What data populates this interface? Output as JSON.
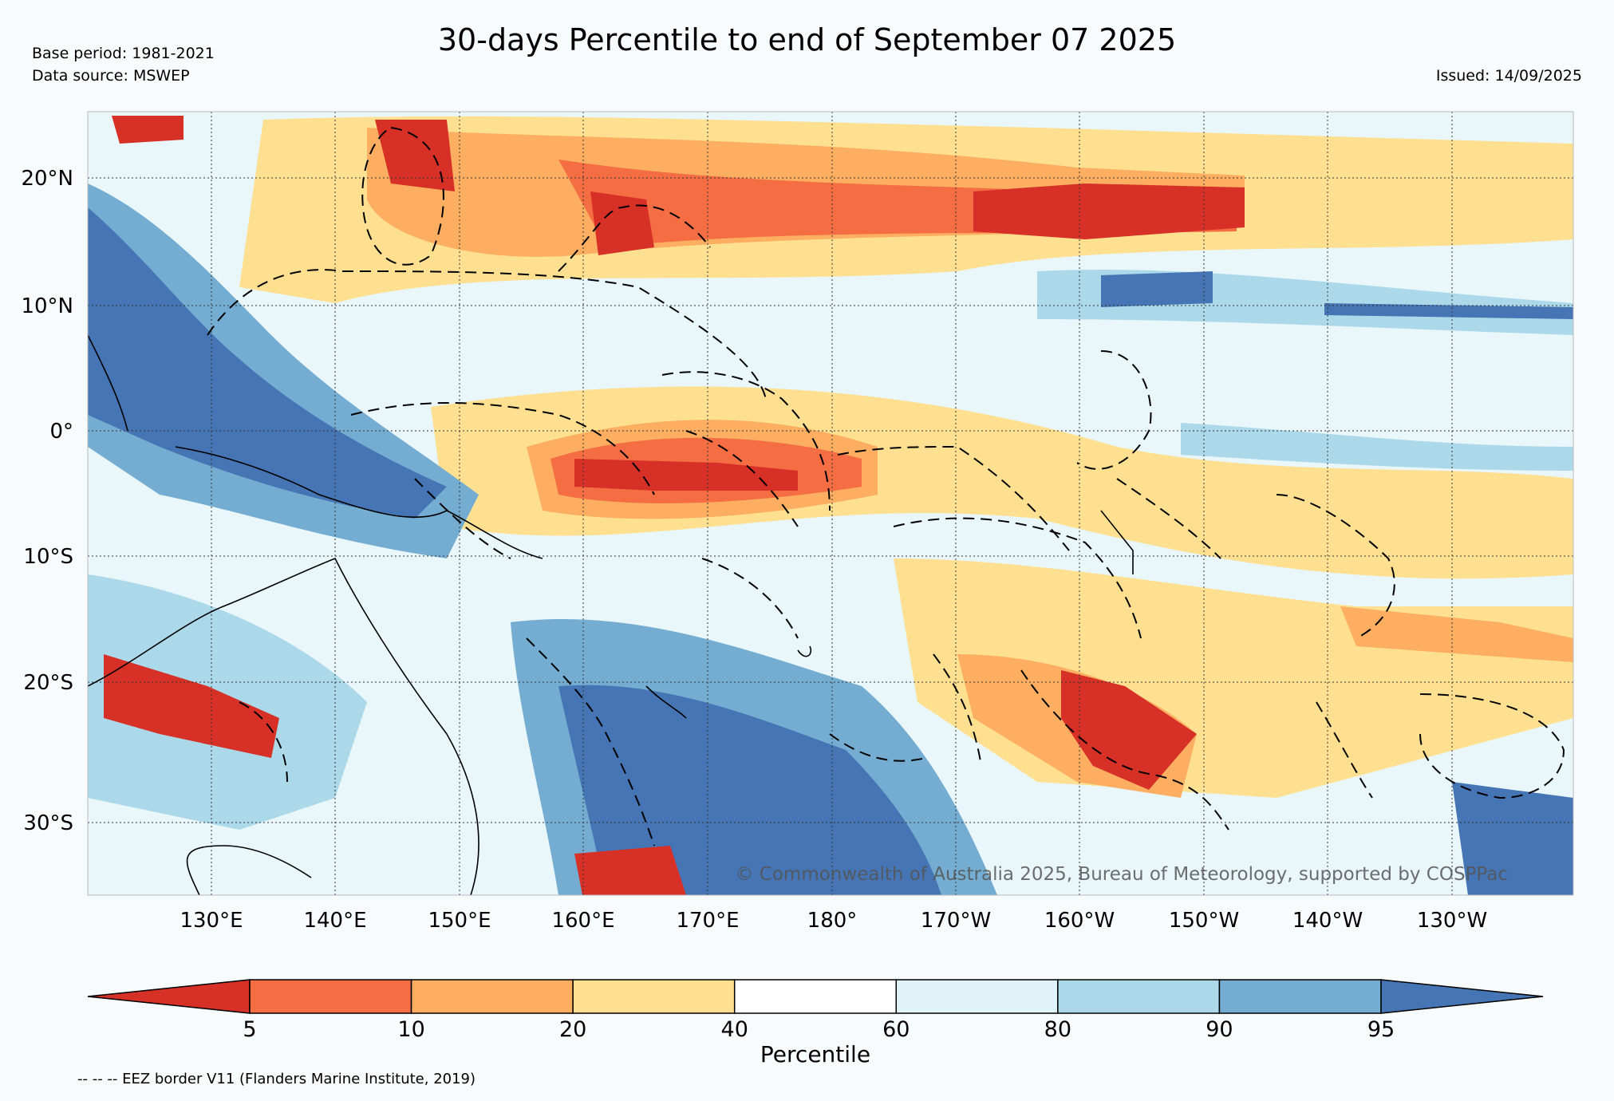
{
  "header": {
    "title": "30-days Percentile to end of September 07 2025",
    "base_period": "Base period: 1981-2021",
    "data_source": "Data source: MSWEP",
    "issued": "Issued: 14/09/2025"
  },
  "map": {
    "copyright": "© Commonwealth of Australia 2025, Bureau of Meteorology, supported by COSPPac",
    "lat_labels": [
      "20°N",
      "10°N",
      "0°",
      "10°S",
      "20°S",
      "30°S"
    ],
    "lon_labels": [
      "130°E",
      "140°E",
      "150°E",
      "160°E",
      "170°E",
      "180°",
      "170°W",
      "160°W",
      "150°W",
      "140°W",
      "130°W"
    ]
  },
  "legend": {
    "title": "Percentile",
    "ticks": [
      "5",
      "10",
      "20",
      "40",
      "60",
      "80",
      "90",
      "95"
    ],
    "colors": [
      "#d73027",
      "#f46d43",
      "#fdae61",
      "#fee090",
      "#ffffff",
      "#e0f3f8",
      "#abd9e9",
      "#74add1",
      "#4575b4"
    ]
  },
  "footnote": "-- -- -- EEZ border V11 (Flanders Marine Institute, 2019)"
}
